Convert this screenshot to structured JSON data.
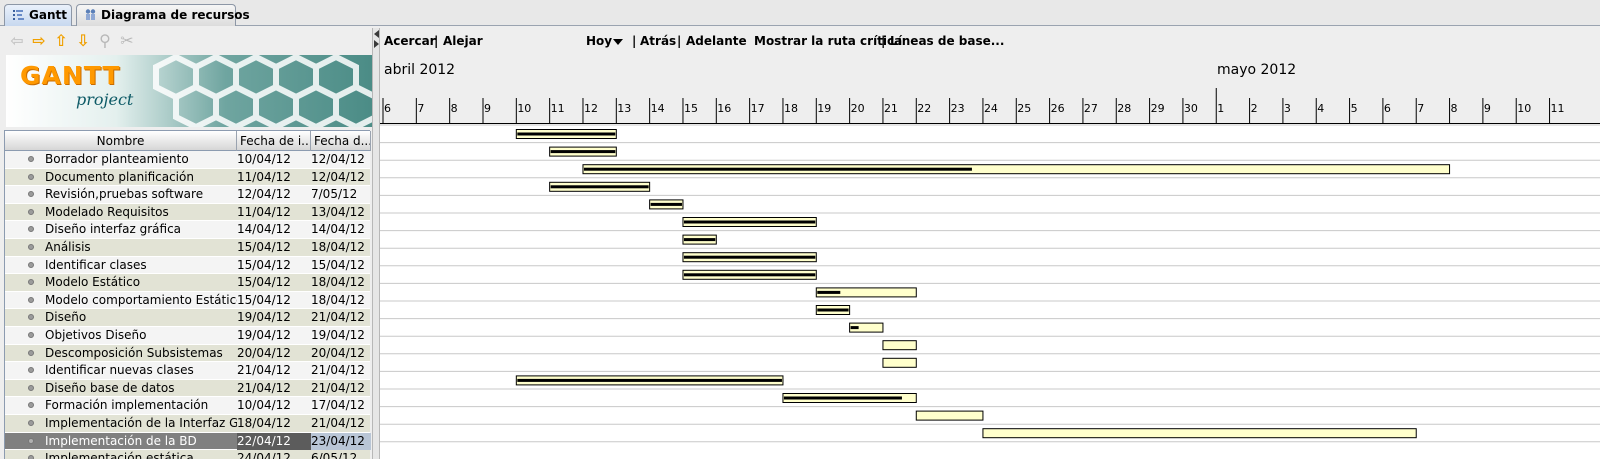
{
  "tabs": [
    {
      "label": "Gantt",
      "icon": "gantt-icon",
      "active": true
    },
    {
      "label": "Diagrama de recursos",
      "icon": "resources-icon",
      "active": false
    }
  ],
  "left_toolbar": {
    "icons": [
      "arrow-left-icon",
      "arrow-right-icon",
      "arrow-up-icon",
      "arrow-down-icon",
      "link-icon",
      "unlink-icon"
    ]
  },
  "logo": {
    "text": "GANTT",
    "subtext": "project"
  },
  "table": {
    "headers": [
      "Nombre",
      "Fecha de i...",
      "Fecha d..."
    ],
    "rows": [
      {
        "name": "Borrador planteamiento",
        "start": "10/04/12",
        "end": "12/04/12"
      },
      {
        "name": "Documento planificación",
        "start": "11/04/12",
        "end": "12/04/12"
      },
      {
        "name": "Revisión,pruebas software",
        "start": "12/04/12",
        "end": "7/05/12"
      },
      {
        "name": "Modelado Requisitos",
        "start": "11/04/12",
        "end": "13/04/12"
      },
      {
        "name": "Diseño interfaz gráfica",
        "start": "14/04/12",
        "end": "14/04/12"
      },
      {
        "name": "Análisis",
        "start": "15/04/12",
        "end": "18/04/12"
      },
      {
        "name": "Identificar clases",
        "start": "15/04/12",
        "end": "15/04/12"
      },
      {
        "name": "Modelo Estático",
        "start": "15/04/12",
        "end": "18/04/12"
      },
      {
        "name": "Modelo comportamiento Estático",
        "start": "15/04/12",
        "end": "18/04/12"
      },
      {
        "name": "Diseño",
        "start": "19/04/12",
        "end": "21/04/12"
      },
      {
        "name": "Objetivos Diseño",
        "start": "19/04/12",
        "end": "19/04/12"
      },
      {
        "name": "Descomposición Subsistemas",
        "start": "20/04/12",
        "end": "20/04/12"
      },
      {
        "name": "Identificar nuevas clases",
        "start": "21/04/12",
        "end": "21/04/12"
      },
      {
        "name": "Diseño base de datos",
        "start": "21/04/12",
        "end": "21/04/12"
      },
      {
        "name": "Formación implementación",
        "start": "10/04/12",
        "end": "17/04/12"
      },
      {
        "name": "Implementación de la Interfaz Grá...",
        "start": "18/04/12",
        "end": "21/04/12"
      },
      {
        "name": "Implementación de la BD",
        "start": "22/04/12",
        "end": "23/04/12",
        "selected": true
      },
      {
        "name": "Implementación estática",
        "start": "24/04/12",
        "end": "6/05/12"
      }
    ]
  },
  "gantt_toolbar": {
    "zoom_in": "Acercar",
    "zoom_out": "Alejar",
    "today": "Hoy",
    "back": "Atrás",
    "forward": "Adelante",
    "critical_path": "Mostrar la ruta crítica",
    "baselines": "Líneas de base...",
    "separator": "|"
  },
  "timeline": {
    "months": [
      "abril 2012",
      "mayo 2012"
    ],
    "day_labels": [
      "6",
      "7",
      "8",
      "9",
      "10",
      "11",
      "12",
      "13",
      "14",
      "15",
      "16",
      "17",
      "18",
      "19",
      "20",
      "21",
      "22",
      "23",
      "24",
      "25",
      "26",
      "27",
      "28",
      "29",
      "30",
      "1",
      "2",
      "3",
      "4",
      "5",
      "6",
      "7",
      "8",
      "9",
      "10",
      "11"
    ]
  },
  "tasks": [
    {
      "start_day": 10,
      "duration_days": 3,
      "progress": 1.0
    },
    {
      "start_day": 11,
      "duration_days": 2,
      "progress": 1.0
    },
    {
      "start_day": 12,
      "duration_days": 26,
      "progress": 0.45
    },
    {
      "start_day": 11,
      "duration_days": 3,
      "progress": 1.0
    },
    {
      "start_day": 14,
      "duration_days": 1,
      "progress": 1.0
    },
    {
      "start_day": 15,
      "duration_days": 4,
      "progress": 1.0
    },
    {
      "start_day": 15,
      "duration_days": 1,
      "progress": 1.0
    },
    {
      "start_day": 15,
      "duration_days": 4,
      "progress": 1.0
    },
    {
      "start_day": 15,
      "duration_days": 4,
      "progress": 1.0
    },
    {
      "start_day": 19,
      "duration_days": 3,
      "progress": 0.25
    },
    {
      "start_day": 19,
      "duration_days": 1,
      "progress": 1.0
    },
    {
      "start_day": 20,
      "duration_days": 1,
      "progress": 0.3
    },
    {
      "start_day": 21,
      "duration_days": 1,
      "progress": 0.0
    },
    {
      "start_day": 21,
      "duration_days": 1,
      "progress": 0.0
    },
    {
      "start_day": 10,
      "duration_days": 8,
      "progress": 1.0
    },
    {
      "start_day": 18,
      "duration_days": 4,
      "progress": 0.9
    },
    {
      "start_day": 22,
      "duration_days": 2,
      "progress": 0.0
    },
    {
      "start_day": 24,
      "duration_days": 13,
      "progress": 0.0
    }
  ],
  "colors": {
    "bar_fill": "#ffffcc",
    "bar_border": "#000000",
    "progress": "#000000",
    "grid": "#c8c8c8"
  }
}
